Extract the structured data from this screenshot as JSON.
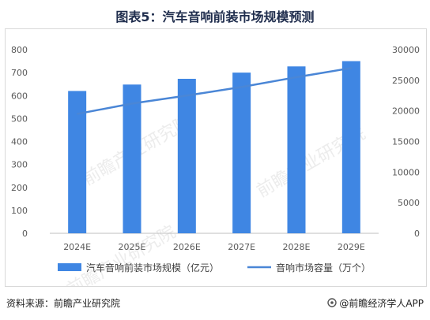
{
  "title": "图表5：汽车音响前装市场规模预测",
  "watermark_text": "前瞻产业研究院",
  "source_label": "资料来源：前瞻产业研究院",
  "brand_label": "@前瞻经济学人APP",
  "brand_icon": "qianzhan-logo-icon",
  "chart_data": {
    "type": "bar",
    "categories": [
      "2024E",
      "2025E",
      "2026E",
      "2027E",
      "2028E",
      "2029E"
    ],
    "series": [
      {
        "name": "汽车音响前装市场规模（亿元）",
        "type": "bar",
        "axis": "left",
        "color": "#3f86e3",
        "values": [
          620,
          648,
          673,
          700,
          727,
          750
        ]
      },
      {
        "name": "音响市场容量（万个）",
        "type": "line",
        "axis": "right",
        "color": "#4a86d6",
        "values": [
          19500,
          21200,
          22500,
          23900,
          25500,
          27000
        ]
      }
    ],
    "y_left": {
      "lim": [
        0,
        800
      ],
      "ticks": [
        "0",
        "100",
        "200",
        "300",
        "400",
        "500",
        "600",
        "700",
        "800"
      ]
    },
    "y_right": {
      "lim": [
        0,
        30000
      ],
      "ticks": [
        "0",
        "5000",
        "10000",
        "15000",
        "20000",
        "25000",
        "30000"
      ]
    },
    "grid": false,
    "legend_position": "bottom"
  }
}
